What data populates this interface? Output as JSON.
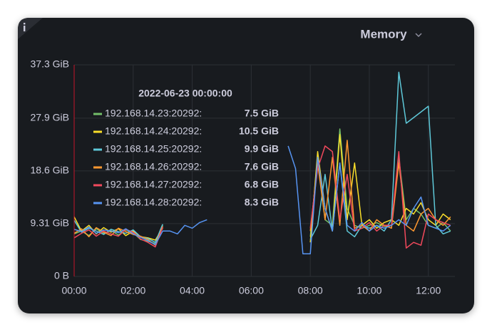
{
  "chart_data": {
    "type": "line",
    "title": "Memory",
    "tooltip_time": "2022-06-23 00:00:00",
    "xlim": [
      0,
      12.9
    ],
    "xticks": [
      {
        "value": 0,
        "label": "00:00"
      },
      {
        "value": 2,
        "label": "02:00"
      },
      {
        "value": 4,
        "label": "04:00"
      },
      {
        "value": 6,
        "label": "06:00"
      },
      {
        "value": 8,
        "label": "08:00"
      },
      {
        "value": 10,
        "label": "10:00"
      },
      {
        "value": 12,
        "label": "12:00"
      }
    ],
    "ylim": [
      0,
      37.3
    ],
    "yticks": [
      {
        "value": 0,
        "label": "0 B"
      },
      {
        "value": 9.31,
        "label": "9.31 GiB"
      },
      {
        "value": 18.6,
        "label": "18.6 GiB"
      },
      {
        "value": 27.9,
        "label": "27.9 GiB"
      },
      {
        "value": 37.3,
        "label": "37.3 GiB"
      }
    ],
    "grid": true,
    "x": [
      0,
      0.25,
      0.5,
      0.75,
      1,
      1.25,
      1.5,
      1.75,
      2,
      2.25,
      2.5,
      2.75,
      3,
      3.25,
      3.5,
      3.75,
      4,
      4.25,
      4.5,
      4.75,
      5,
      5.25,
      5.5,
      5.75,
      6,
      6.25,
      6.5,
      6.75,
      7,
      7.25,
      7.5,
      7.75,
      8,
      8.25,
      8.5,
      8.75,
      9,
      9.25,
      9.5,
      9.75,
      10,
      10.25,
      10.5,
      10.75,
      11,
      11.25,
      11.5,
      11.75,
      12,
      12.25,
      12.5,
      12.75
    ],
    "series": [
      {
        "name": "192.168.14.23:20292:",
        "color": "#73bf69",
        "tooltip_value": 7.5,
        "tooltip_label": "7.5 GiB",
        "values": [
          7.5,
          8,
          7.2,
          8.4,
          7.6,
          8.1,
          7.3,
          8.2,
          7.7,
          6.5,
          6.2,
          5.8,
          9.0,
          null,
          null,
          null,
          null,
          null,
          null,
          null,
          null,
          null,
          null,
          null,
          null,
          null,
          null,
          null,
          null,
          null,
          null,
          null,
          7,
          21,
          10,
          9,
          26,
          12,
          9,
          8.5,
          9,
          9.5,
          8.8,
          9,
          21,
          10,
          12,
          11,
          9,
          8.5,
          9.5,
          8
        ]
      },
      {
        "name": "192.168.14.24:20292:",
        "color": "#fade2a",
        "tooltip_value": 10.5,
        "tooltip_label": "10.5 GiB",
        "values": [
          10.5,
          8,
          9,
          7.5,
          8.6,
          7.8,
          8.4,
          7.2,
          8,
          7,
          6.8,
          6.4,
          8.5,
          null,
          null,
          null,
          null,
          null,
          null,
          null,
          null,
          null,
          null,
          null,
          null,
          null,
          null,
          null,
          null,
          null,
          null,
          null,
          6,
          22,
          12,
          8,
          25,
          10,
          20,
          9,
          10,
          8.5,
          9.5,
          10,
          9,
          12,
          11,
          13,
          10,
          9,
          11,
          10
        ]
      },
      {
        "name": "192.168.14.25:20292:",
        "color": "#5ec8d8",
        "tooltip_value": 9.9,
        "tooltip_label": "9.9 GiB",
        "values": [
          9.9,
          7.8,
          8.5,
          8,
          7.4,
          8.3,
          7.9,
          7.6,
          8.2,
          7,
          6.7,
          6,
          9.2,
          null,
          null,
          null,
          null,
          null,
          null,
          null,
          null,
          null,
          null,
          null,
          null,
          null,
          null,
          null,
          null,
          null,
          null,
          null,
          6.5,
          9,
          18,
          8,
          20,
          8,
          7,
          9,
          8.5,
          9,
          8,
          10,
          36,
          27,
          28,
          29,
          30,
          9,
          7.5,
          8
        ]
      },
      {
        "name": "192.168.14.26:20292:",
        "color": "#ff9830",
        "tooltip_value": 7.6,
        "tooltip_label": "7.6 GiB",
        "values": [
          7.6,
          8.4,
          7,
          8.6,
          7.8,
          7.2,
          8.5,
          7.9,
          7.4,
          7.1,
          6.5,
          5.5,
          8.8,
          null,
          null,
          null,
          null,
          null,
          null,
          null,
          null,
          null,
          null,
          null,
          null,
          null,
          null,
          null,
          null,
          null,
          null,
          null,
          8,
          20,
          10,
          21,
          9,
          24,
          8.5,
          9,
          8,
          10,
          9,
          8.5,
          20,
          9,
          8,
          11,
          12,
          10,
          9,
          10.5
        ]
      },
      {
        "name": "192.168.14.27:20292:",
        "color": "#f2495c",
        "tooltip_value": 6.8,
        "tooltip_label": "6.8 GiB",
        "values": [
          6.8,
          7.6,
          8.2,
          7.1,
          8,
          7.5,
          7.1,
          8.3,
          7.8,
          6.6,
          6,
          5.2,
          8.7,
          null,
          null,
          null,
          null,
          null,
          null,
          null,
          null,
          null,
          null,
          null,
          null,
          null,
          null,
          null,
          null,
          null,
          null,
          null,
          8.5,
          19,
          23,
          22,
          10,
          18,
          8,
          8.5,
          9.5,
          8,
          9,
          9,
          22,
          5,
          6,
          5.5,
          11,
          10,
          9.5,
          9
        ]
      },
      {
        "name": "192.168.14.28:20292:",
        "color": "#5794f2",
        "tooltip_value": 8.3,
        "tooltip_label": "8.3 GiB",
        "values": [
          8.3,
          7.9,
          8.7,
          7.6,
          8.2,
          8,
          7.7,
          8.4,
          7.5,
          6.9,
          6.3,
          5.6,
          8,
          8,
          7.5,
          9,
          8.5,
          9.5,
          10,
          null,
          null,
          null,
          null,
          null,
          null,
          null,
          null,
          null,
          null,
          23,
          19,
          4,
          4,
          21,
          12,
          8,
          20,
          9,
          8,
          9.5,
          8,
          9,
          8.5,
          9,
          10,
          9,
          12,
          14,
          9,
          8.5,
          8,
          9
        ]
      }
    ]
  }
}
